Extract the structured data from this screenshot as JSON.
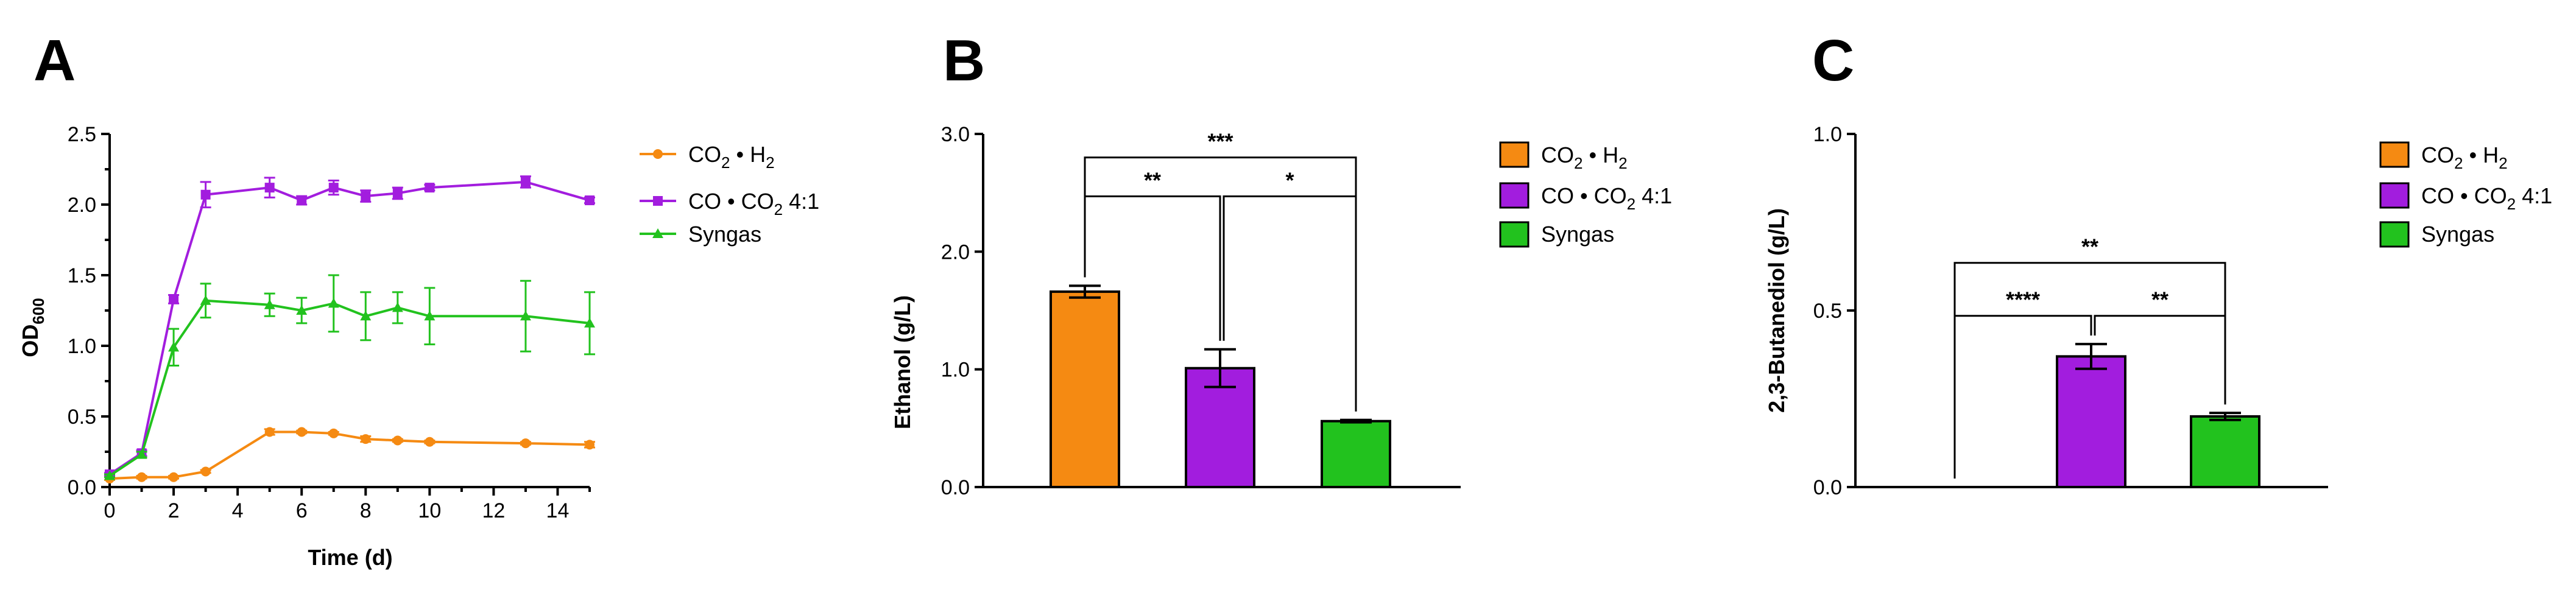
{
  "colors": {
    "co2_h2": "#F58A12",
    "co_co2": "#A21DDE",
    "syngas": "#22C21E",
    "axis": "#000000"
  },
  "legend": {
    "co2_h2": {
      "a": "CO",
      "s1": "2",
      "b": " • H",
      "s2": "2"
    },
    "co_co2": {
      "a": "CO • CO",
      "s1": "2",
      "b": " 4:1"
    },
    "syngas": "Syngas"
  },
  "panel_letters": [
    "A",
    "B",
    "C"
  ],
  "chart_data": [
    {
      "panel": "A",
      "type": "line",
      "xlabel": "Time (d)",
      "ylabel": {
        "base": "OD",
        "sub": "600"
      },
      "xlim": [
        0,
        15
      ],
      "ylim": [
        0,
        2.5
      ],
      "xticks": [
        0,
        2,
        4,
        6,
        8,
        10,
        12,
        14
      ],
      "yticks": [
        0.0,
        0.5,
        1.0,
        1.5,
        2.0,
        2.5
      ],
      "xtick_labels": [
        "0",
        "2",
        "4",
        "6",
        "8",
        "10",
        "12",
        "14"
      ],
      "ytick_labels": [
        "0.0",
        "0.5",
        "1.0",
        "1.5",
        "2.0",
        "2.5"
      ],
      "legend_position": "right",
      "series": [
        {
          "key": "co2_h2",
          "marker": "circle",
          "x": [
            0,
            1,
            2,
            3,
            5,
            6,
            7,
            8,
            9,
            10,
            13,
            15
          ],
          "y": [
            0.06,
            0.07,
            0.07,
            0.11,
            0.39,
            0.39,
            0.38,
            0.34,
            0.33,
            0.32,
            0.31,
            0.3
          ],
          "err": [
            0.01,
            0.01,
            0.01,
            0.01,
            0.02,
            0.01,
            0.01,
            0.02,
            0.01,
            0.01,
            0.01,
            0.02
          ]
        },
        {
          "key": "co_co2",
          "marker": "square",
          "x": [
            0,
            1,
            2,
            3,
            5,
            6,
            7,
            8,
            9,
            10,
            13,
            15
          ],
          "y": [
            0.09,
            0.24,
            1.33,
            2.07,
            2.12,
            2.03,
            2.12,
            2.06,
            2.08,
            2.12,
            2.16,
            2.03
          ],
          "err": [
            0.01,
            0.02,
            0.03,
            0.09,
            0.07,
            0.03,
            0.05,
            0.04,
            0.04,
            0.02,
            0.04,
            0.02
          ]
        },
        {
          "key": "syngas",
          "marker": "triangle",
          "x": [
            0,
            1,
            2,
            3,
            5,
            6,
            7,
            8,
            9,
            10,
            13,
            15
          ],
          "y": [
            0.08,
            0.23,
            0.99,
            1.32,
            1.29,
            1.25,
            1.3,
            1.21,
            1.27,
            1.21,
            1.21,
            1.16
          ],
          "err": [
            0.01,
            0.02,
            0.13,
            0.12,
            0.08,
            0.09,
            0.2,
            0.17,
            0.11,
            0.2,
            0.25,
            0.22
          ]
        }
      ]
    },
    {
      "panel": "B",
      "type": "bar",
      "ylabel": "Ethanol (g/L)",
      "ylim": [
        0,
        3.0
      ],
      "yticks": [
        0.0,
        1.0,
        2.0,
        3.0
      ],
      "ytick_labels": [
        "0.0",
        "1.0",
        "2.0",
        "3.0"
      ],
      "legend_position": "right",
      "bars": [
        {
          "key": "co2_h2",
          "value": 1.66,
          "err": 0.05
        },
        {
          "key": "co_co2",
          "value": 1.01,
          "err": 0.16
        },
        {
          "key": "syngas",
          "value": 0.56,
          "err": 0.01
        }
      ],
      "significance": [
        {
          "from": 0,
          "to": 1,
          "label": "**",
          "level": 2.47
        },
        {
          "from": 1,
          "to": 2,
          "label": "*",
          "level": 2.47
        },
        {
          "from": 0,
          "to": 2,
          "label": "***",
          "level": 2.8
        }
      ]
    },
    {
      "panel": "C",
      "type": "bar",
      "ylabel": "2,3-Butanediol (g/L)",
      "ylim": [
        0,
        1.0
      ],
      "yticks": [
        0.0,
        0.5,
        1.0
      ],
      "ytick_labels": [
        "0.0",
        "0.5",
        "1.0"
      ],
      "legend_position": "right",
      "bars": [
        {
          "key": "co2_h2",
          "value": 0.0,
          "err": 0.0
        },
        {
          "key": "co_co2",
          "value": 0.37,
          "err": 0.035
        },
        {
          "key": "syngas",
          "value": 0.2,
          "err": 0.01
        }
      ],
      "significance": [
        {
          "from": 0,
          "to": 1,
          "label": "****",
          "level": 0.485
        },
        {
          "from": 1,
          "to": 2,
          "label": "**",
          "level": 0.485
        },
        {
          "from": 0,
          "to": 2,
          "label": "**",
          "level": 0.635
        }
      ]
    }
  ]
}
